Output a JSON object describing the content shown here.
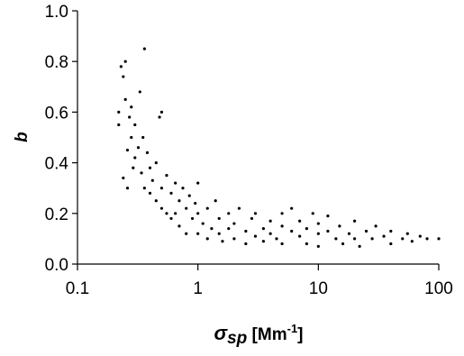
{
  "chart_data": {
    "type": "scatter",
    "y_label": "b",
    "x_label_parts": [
      "σ",
      "sp",
      " [Mm",
      "-1",
      "]"
    ],
    "x_scale": "log",
    "color": "#000000",
    "grid": false,
    "xlim": [
      0.1,
      100
    ],
    "xticks": [
      0.1,
      1,
      10,
      100
    ],
    "ylim": [
      0,
      1
    ],
    "yticks": [
      {
        "value": 0,
        "label": "0.0"
      },
      0.2,
      0.4,
      0.6,
      0.8,
      {
        "value": 1,
        "label": "1.0"
      }
    ],
    "x": [
      0.22,
      0.22,
      0.23,
      0.24,
      0.24,
      0.25,
      0.25,
      0.26,
      0.26,
      0.27,
      0.28,
      0.28,
      0.29,
      0.3,
      0.3,
      0.32,
      0.33,
      0.34,
      0.35,
      0.36,
      0.36,
      0.38,
      0.4,
      0.4,
      0.42,
      0.45,
      0.45,
      0.48,
      0.5,
      0.5,
      0.5,
      0.55,
      0.55,
      0.6,
      0.6,
      0.65,
      0.65,
      0.7,
      0.7,
      0.75,
      0.8,
      0.8,
      0.85,
      0.9,
      0.95,
      1.0,
      1.0,
      1.0,
      1.1,
      1.2,
      1.2,
      1.3,
      1.4,
      1.5,
      1.5,
      1.6,
      1.8,
      1.8,
      2.0,
      2.0,
      2.2,
      2.5,
      2.5,
      2.8,
      3.0,
      3.0,
      3.5,
      3.5,
      4,
      4,
      4.5,
      5,
      5,
      5,
      6,
      6,
      7,
      7,
      8,
      8,
      9,
      10,
      10,
      10,
      12,
      12,
      14,
      15,
      16,
      18,
      20,
      20,
      22,
      25,
      28,
      30,
      35,
      40,
      40,
      50,
      55,
      60,
      70,
      80,
      100
    ],
    "values": [
      0.55,
      0.6,
      0.78,
      0.74,
      0.34,
      0.65,
      0.8,
      0.45,
      0.3,
      0.58,
      0.5,
      0.62,
      0.38,
      0.42,
      0.55,
      0.46,
      0.68,
      0.36,
      0.5,
      0.85,
      0.3,
      0.44,
      0.38,
      0.28,
      0.33,
      0.4,
      0.25,
      0.58,
      0.6,
      0.3,
      0.22,
      0.35,
      0.2,
      0.28,
      0.18,
      0.32,
      0.2,
      0.25,
      0.15,
      0.3,
      0.22,
      0.12,
      0.27,
      0.18,
      0.24,
      0.2,
      0.12,
      0.32,
      0.16,
      0.22,
      0.1,
      0.14,
      0.25,
      0.12,
      0.18,
      0.09,
      0.2,
      0.14,
      0.1,
      0.16,
      0.22,
      0.13,
      0.08,
      0.18,
      0.11,
      0.2,
      0.14,
      0.09,
      0.17,
      0.12,
      0.1,
      0.15,
      0.2,
      0.08,
      0.13,
      0.22,
      0.11,
      0.17,
      0.14,
      0.08,
      0.2,
      0.12,
      0.16,
      0.07,
      0.13,
      0.19,
      0.1,
      0.15,
      0.08,
      0.12,
      0.17,
      0.1,
      0.07,
      0.13,
      0.1,
      0.15,
      0.11,
      0.08,
      0.13,
      0.1,
      0.12,
      0.09,
      0.11,
      0.1,
      0.1
    ]
  }
}
